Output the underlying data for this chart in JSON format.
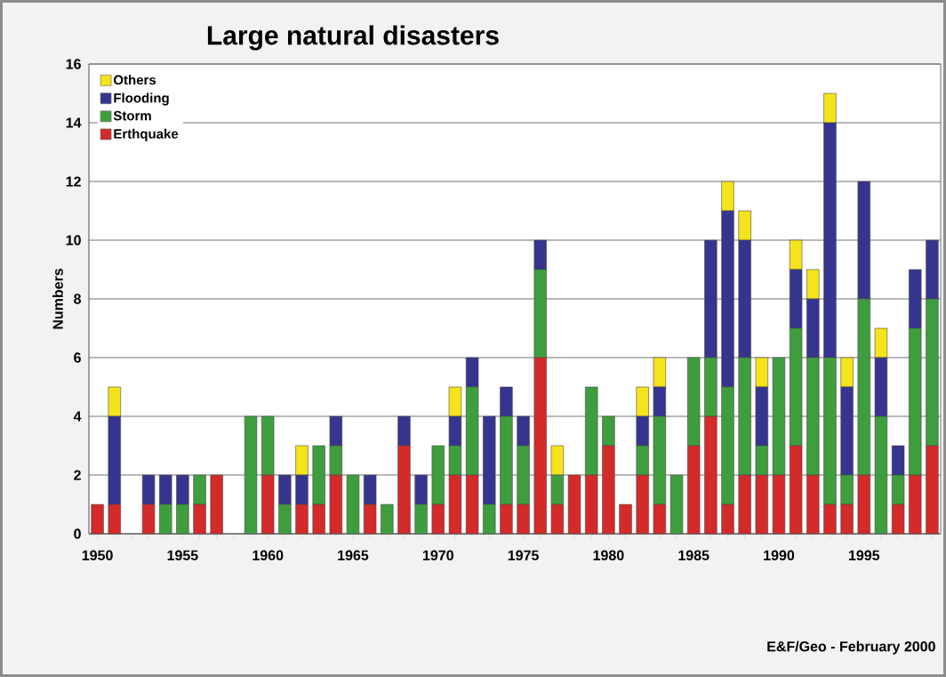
{
  "chart_data": {
    "type": "bar",
    "title": "Large natural disasters",
    "ylabel": "Numbers",
    "categories": [
      "1950",
      null,
      null,
      null,
      null,
      "1955",
      null,
      null,
      null,
      null,
      "1960",
      null,
      null,
      null,
      null,
      "1965",
      null,
      null,
      null,
      null,
      "1970",
      null,
      null,
      null,
      null,
      "1975",
      null,
      null,
      null,
      null,
      "1980",
      null,
      null,
      null,
      null,
      "1985",
      null,
      null,
      null,
      null,
      "1990",
      null,
      null,
      null,
      null,
      "1995",
      null,
      null,
      null,
      null
    ],
    "stacked": true,
    "series": [
      {
        "name": "Erthquake",
        "color": "#d42a2a",
        "values": [
          1,
          1,
          0,
          1,
          0,
          0,
          1,
          2,
          0,
          0,
          2,
          0,
          1,
          1,
          2,
          0,
          1,
          0,
          3,
          0,
          1,
          2,
          2,
          0,
          1,
          1,
          6,
          1,
          2,
          2,
          3,
          1,
          2,
          1,
          0,
          3,
          4,
          1,
          2,
          2,
          2,
          3,
          2,
          1,
          1,
          2,
          0,
          1,
          2,
          3
        ]
      },
      {
        "name": "Storm",
        "color": "#3e9e3e",
        "values": [
          0,
          0,
          0,
          0,
          1,
          1,
          1,
          0,
          0,
          4,
          2,
          1,
          0,
          2,
          1,
          2,
          0,
          1,
          0,
          1,
          2,
          1,
          3,
          1,
          3,
          2,
          3,
          1,
          0,
          3,
          1,
          0,
          1,
          3,
          2,
          3,
          2,
          4,
          4,
          1,
          4,
          4,
          4,
          5,
          1,
          6,
          4,
          1,
          5,
          5
        ]
      },
      {
        "name": "Flooding",
        "color": "#35358f",
        "values": [
          0,
          3,
          0,
          1,
          1,
          1,
          0,
          0,
          0,
          0,
          0,
          1,
          1,
          0,
          1,
          0,
          1,
          0,
          1,
          1,
          0,
          1,
          1,
          3,
          1,
          1,
          1,
          0,
          0,
          0,
          0,
          0,
          1,
          1,
          0,
          0,
          4,
          6,
          4,
          2,
          0,
          2,
          2,
          8,
          3,
          4,
          2,
          1,
          2,
          2
        ]
      },
      {
        "name": "Others",
        "color": "#f5e31c",
        "values": [
          0,
          1,
          0,
          0,
          0,
          0,
          0,
          0,
          0,
          0,
          0,
          0,
          1,
          0,
          0,
          0,
          0,
          0,
          0,
          0,
          0,
          1,
          0,
          0,
          0,
          0,
          0,
          1,
          0,
          0,
          0,
          0,
          1,
          1,
          0,
          0,
          0,
          1,
          1,
          1,
          0,
          1,
          1,
          1,
          1,
          0,
          1,
          0,
          0,
          0
        ]
      }
    ],
    "ylim": [
      0,
      16
    ],
    "yticks": [
      0,
      2,
      4,
      6,
      8,
      10,
      12,
      14,
      16
    ],
    "grid": "y",
    "legend": "top left",
    "annotations": [
      "E&F/Geo - February 2000"
    ]
  }
}
